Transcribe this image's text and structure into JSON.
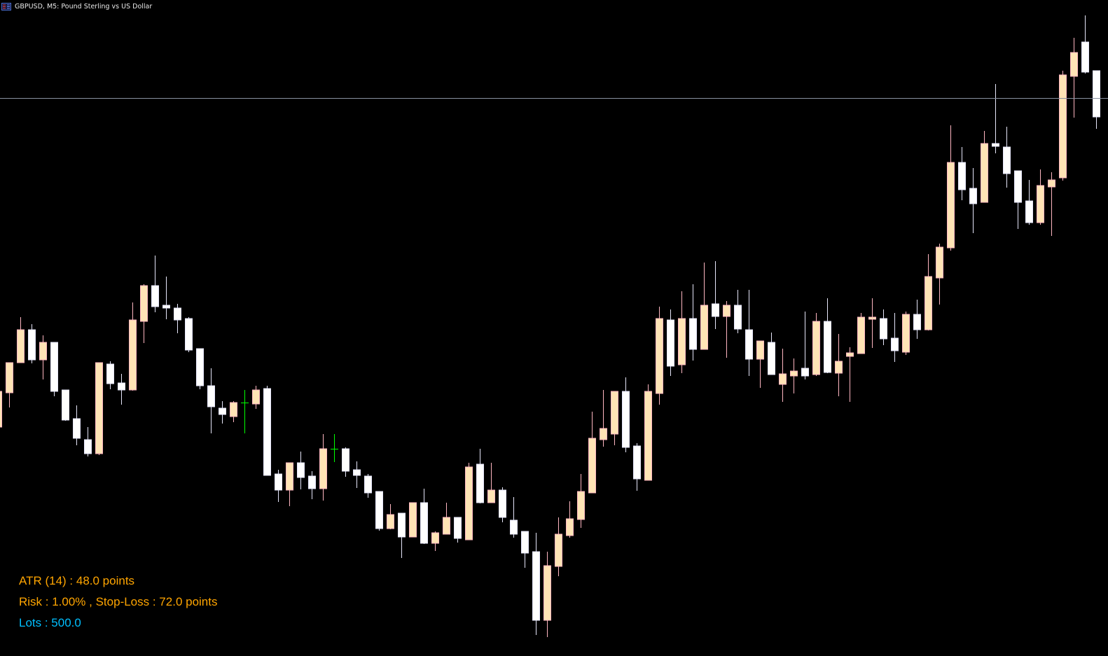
{
  "window": {
    "title": "GBPUSD, M5:  Pound Sterling vs US Dollar",
    "icon": "chart-window-icon"
  },
  "info_panel": {
    "atr_text": "ATR (14) : 48.0 points",
    "risk_text": "Risk : 1.00% , Stop-Loss : 72.0 points",
    "lots_text": "Lots : 500.0",
    "text_color": "#FFA500",
    "lots_color": "#00BFFF"
  },
  "colors": {
    "background": "#000000",
    "bull_body": "#FFE4B5",
    "bull_border": "#FFB6C1",
    "bear_body": "#FFFFFF",
    "bear_border": "#E6E6FA",
    "doji": "#00FF00",
    "hline": "#8891A0"
  },
  "chart_data": {
    "type": "candlestick",
    "title": "",
    "symbol": "GBPUSD",
    "timeframe": "M5",
    "value_scale_note": "relative units (no price axis shown)",
    "ylim": [
      63,
      1000
    ],
    "grid": false,
    "horizontal_line": 860,
    "ohlc": [
      [
        390,
        441,
        390,
        441
      ],
      [
        439,
        482,
        418,
        482
      ],
      [
        482,
        547,
        482,
        529
      ],
      [
        529,
        537,
        481,
        486
      ],
      [
        486,
        521,
        458,
        511
      ],
      [
        511,
        511,
        434,
        441
      ],
      [
        443,
        443,
        399,
        400
      ],
      [
        402,
        421,
        364,
        374
      ],
      [
        372,
        390,
        348,
        352
      ],
      [
        352,
        482,
        350,
        482
      ],
      [
        480,
        484,
        444,
        452
      ],
      [
        453,
        466,
        422,
        443
      ],
      [
        443,
        568,
        442,
        543
      ],
      [
        541,
        594,
        510,
        592
      ],
      [
        592,
        635,
        554,
        562
      ],
      [
        564,
        605,
        544,
        560
      ],
      [
        560,
        566,
        524,
        543
      ],
      [
        545,
        547,
        497,
        500
      ],
      [
        502,
        502,
        444,
        449
      ],
      [
        449,
        474,
        381,
        419
      ],
      [
        417,
        427,
        395,
        408
      ],
      [
        405,
        427,
        397,
        425
      ],
      [
        425,
        443,
        381,
        425
      ],
      [
        423,
        449,
        416,
        443
      ],
      [
        445,
        449,
        321,
        321
      ],
      [
        323,
        329,
        283,
        300
      ],
      [
        300,
        339,
        277,
        339
      ],
      [
        339,
        355,
        301,
        318
      ],
      [
        320,
        327,
        287,
        302
      ],
      [
        302,
        380,
        285,
        359
      ],
      [
        359,
        380,
        340,
        359
      ],
      [
        359,
        361,
        319,
        327
      ],
      [
        329,
        341,
        303,
        321
      ],
      [
        320,
        323,
        289,
        296
      ],
      [
        298,
        298,
        242,
        245
      ],
      [
        245,
        280,
        244,
        265
      ],
      [
        267,
        267,
        203,
        233
      ],
      [
        233,
        282,
        233,
        282
      ],
      [
        282,
        302,
        223,
        224
      ],
      [
        224,
        241,
        213,
        239
      ],
      [
        237,
        282,
        237,
        261
      ],
      [
        261,
        261,
        225,
        231
      ],
      [
        229,
        339,
        229,
        333
      ],
      [
        337,
        359,
        281,
        282
      ],
      [
        282,
        339,
        282,
        300
      ],
      [
        300,
        304,
        254,
        261
      ],
      [
        257,
        290,
        232,
        237
      ],
      [
        241,
        241,
        189,
        210
      ],
      [
        212,
        239,
        93,
        114
      ],
      [
        114,
        212,
        90,
        192
      ],
      [
        191,
        261,
        177,
        237
      ],
      [
        235,
        284,
        232,
        259
      ],
      [
        258,
        323,
        246,
        298
      ],
      [
        296,
        412,
        296,
        374
      ],
      [
        372,
        443,
        362,
        388
      ],
      [
        380,
        441,
        364,
        441
      ],
      [
        441,
        461,
        354,
        361
      ],
      [
        363,
        367,
        299,
        316
      ],
      [
        314,
        451,
        314,
        441
      ],
      [
        438,
        562,
        422,
        545
      ],
      [
        543,
        558,
        463,
        477
      ],
      [
        479,
        584,
        467,
        545
      ],
      [
        545,
        594,
        485,
        501
      ],
      [
        501,
        625,
        501,
        564
      ],
      [
        566,
        627,
        530,
        548
      ],
      [
        548,
        570,
        489,
        564
      ],
      [
        564,
        586,
        524,
        530
      ],
      [
        529,
        586,
        463,
        487
      ],
      [
        487,
        513,
        446,
        513
      ],
      [
        511,
        525,
        465,
        465
      ],
      [
        451,
        502,
        426,
        466
      ],
      [
        463,
        488,
        438,
        470
      ],
      [
        474,
        555,
        458,
        463
      ],
      [
        465,
        553,
        463,
        541
      ],
      [
        541,
        574,
        467,
        468
      ],
      [
        467,
        523,
        434,
        484
      ],
      [
        491,
        504,
        426,
        496
      ],
      [
        495,
        553,
        495,
        547
      ],
      [
        544,
        574,
        503,
        547
      ],
      [
        545,
        558,
        507,
        516
      ],
      [
        517,
        553,
        483,
        499
      ],
      [
        497,
        555,
        493,
        551
      ],
      [
        551,
        572,
        516,
        529
      ],
      [
        529,
        637,
        528,
        605
      ],
      [
        603,
        652,
        565,
        647
      ],
      [
        646,
        821,
        642,
        768
      ],
      [
        768,
        790,
        714,
        729
      ],
      [
        731,
        760,
        667,
        709
      ],
      [
        711,
        813,
        711,
        795
      ],
      [
        795,
        880,
        781,
        791
      ],
      [
        790,
        819,
        732,
        752
      ],
      [
        756,
        756,
        673,
        711
      ],
      [
        713,
        743,
        679,
        682
      ],
      [
        682,
        758,
        679,
        735
      ],
      [
        733,
        754,
        663,
        743
      ],
      [
        746,
        899,
        742,
        893
      ],
      [
        891,
        946,
        832,
        925
      ],
      [
        940,
        978,
        895,
        897
      ],
      [
        899,
        899,
        816,
        833
      ]
    ]
  }
}
